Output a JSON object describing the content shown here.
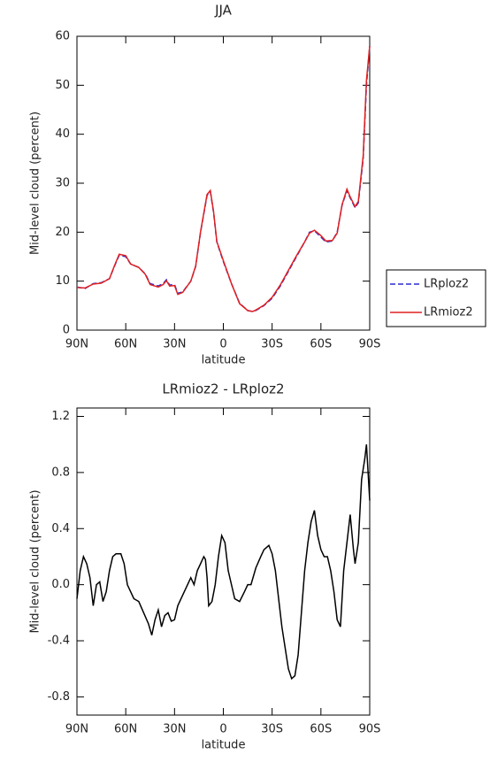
{
  "chart_data": [
    {
      "type": "line",
      "title": "JJA",
      "x_label": "latitude",
      "y_label": "Mid-level cloud (percent)",
      "x": [
        90,
        85,
        80,
        75,
        70,
        67,
        64,
        60,
        57,
        52,
        48,
        45,
        40,
        37,
        35,
        33,
        30,
        28,
        25,
        20,
        17,
        14,
        10,
        8,
        6,
        4,
        0,
        -5,
        -10,
        -15,
        -18,
        -20,
        -25,
        -30,
        -35,
        -40,
        -45,
        -50,
        -53,
        -56,
        -60,
        -63,
        -67,
        -70,
        -73,
        -76,
        -78,
        -81,
        -83,
        -86,
        -88,
        -90
      ],
      "series": [
        {
          "name": "LRploz2",
          "color": "#2a2ad0",
          "dash": "dashed",
          "values": [
            8.8,
            8.5,
            9.5,
            9.7,
            10.5,
            13,
            15.3,
            15.0,
            13.5,
            12.8,
            11.5,
            9.5,
            9.0,
            9.5,
            10.3,
            9.2,
            9.3,
            7.5,
            7.8,
            10,
            13,
            20,
            27.5,
            28.3,
            24,
            18,
            14,
            9.5,
            5.5,
            4.0,
            3.8,
            4.0,
            5,
            6.5,
            9,
            12,
            15,
            18,
            20,
            20.3,
            19,
            18,
            18.2,
            20,
            25.5,
            28.5,
            27,
            25,
            26,
            35,
            50,
            58
          ]
        },
        {
          "name": "LRmioz2",
          "color": "#e02020",
          "dash": "solid",
          "values": [
            8.7,
            8.6,
            9.4,
            9.6,
            10.5,
            13.1,
            15.5,
            15.2,
            13.5,
            12.8,
            11.4,
            9.3,
            8.8,
            9.3,
            10.1,
            9.0,
            9.1,
            7.3,
            7.7,
            10,
            13.1,
            20.1,
            27.7,
            28.5,
            24.2,
            18.1,
            14.2,
            9.5,
            5.4,
            4.0,
            3.8,
            4.1,
            5.1,
            6.7,
            9.2,
            12.2,
            15.2,
            18,
            19.8,
            20.4,
            19.3,
            18.2,
            18.3,
            19.8,
            25.6,
            28.8,
            27.2,
            25.2,
            26.3,
            35.6,
            51,
            58
          ]
        }
      ],
      "xlim": [
        90,
        -90
      ],
      "ylim": [
        0,
        60
      ],
      "xticks": [
        {
          "value": 90,
          "label": "90N"
        },
        {
          "value": 60,
          "label": "60N"
        },
        {
          "value": 30,
          "label": "30N"
        },
        0,
        {
          "value": -30,
          "label": "30S"
        },
        {
          "value": -60,
          "label": "60S"
        },
        {
          "value": -90,
          "label": "90S"
        }
      ],
      "yticks": [
        0,
        10,
        20,
        30,
        40,
        50,
        60
      ],
      "legend": "right"
    },
    {
      "type": "line",
      "title": "LRmioz2 - LRploz2",
      "x_label": "latitude",
      "y_label": "Mid-level cloud (percent)",
      "x": [
        90,
        88,
        86,
        84,
        82,
        80,
        78,
        76,
        74,
        72,
        70,
        68,
        66,
        63,
        61,
        59,
        57,
        55,
        52,
        49,
        46,
        44,
        42,
        40,
        38,
        36,
        34,
        32,
        30,
        28,
        26,
        24,
        22,
        20,
        18,
        16,
        14,
        12,
        11,
        10,
        9,
        7,
        5,
        3,
        1,
        -1,
        -3,
        -5,
        -7,
        -10,
        -13,
        -15,
        -17,
        -20,
        -23,
        -25,
        -28,
        -30,
        -32,
        -34,
        -36,
        -38,
        -40,
        -42,
        -44,
        -46,
        -48,
        -50,
        -52,
        -54,
        -56,
        -58,
        -60,
        -62,
        -64,
        -66,
        -68,
        -70,
        -72,
        -74,
        -76,
        -78,
        -80,
        -81,
        -83,
        -85,
        -87,
        -88,
        -89,
        -90
      ],
      "values": [
        -0.1,
        0.1,
        0.2,
        0.15,
        0.05,
        -0.15,
        0.0,
        0.02,
        -0.12,
        -0.05,
        0.1,
        0.2,
        0.22,
        0.22,
        0.15,
        0.0,
        -0.05,
        -0.1,
        -0.12,
        -0.2,
        -0.28,
        -0.36,
        -0.25,
        -0.18,
        -0.3,
        -0.22,
        -0.2,
        -0.26,
        -0.25,
        -0.15,
        -0.1,
        -0.05,
        0.0,
        0.05,
        0.0,
        0.1,
        0.15,
        0.2,
        0.18,
        0.05,
        -0.15,
        -0.12,
        0.0,
        0.2,
        0.35,
        0.3,
        0.1,
        0.0,
        -0.1,
        -0.12,
        -0.05,
        0.0,
        0.0,
        0.12,
        0.2,
        0.25,
        0.28,
        0.22,
        0.1,
        -0.1,
        -0.3,
        -0.45,
        -0.6,
        -0.67,
        -0.65,
        -0.5,
        -0.2,
        0.1,
        0.3,
        0.45,
        0.53,
        0.35,
        0.25,
        0.2,
        0.2,
        0.1,
        -0.05,
        -0.25,
        -0.3,
        0.1,
        0.3,
        0.5,
        0.25,
        0.15,
        0.3,
        0.75,
        0.9,
        1.0,
        0.8,
        0.6
      ],
      "color": "#000000",
      "xlim": [
        90,
        -90
      ],
      "ylim": [
        -0.93,
        1.26
      ],
      "xticks": [
        {
          "value": 90,
          "label": "90N"
        },
        {
          "value": 60,
          "label": "60N"
        },
        {
          "value": 30,
          "label": "30N"
        },
        0,
        {
          "value": -30,
          "label": "30S"
        },
        {
          "value": -60,
          "label": "60S"
        },
        {
          "value": -90,
          "label": "90S"
        }
      ],
      "yticks": [
        -0.8,
        -0.4,
        {
          "value": 0,
          "label": "0.0"
        },
        0.4,
        0.8,
        1.2
      ]
    }
  ]
}
